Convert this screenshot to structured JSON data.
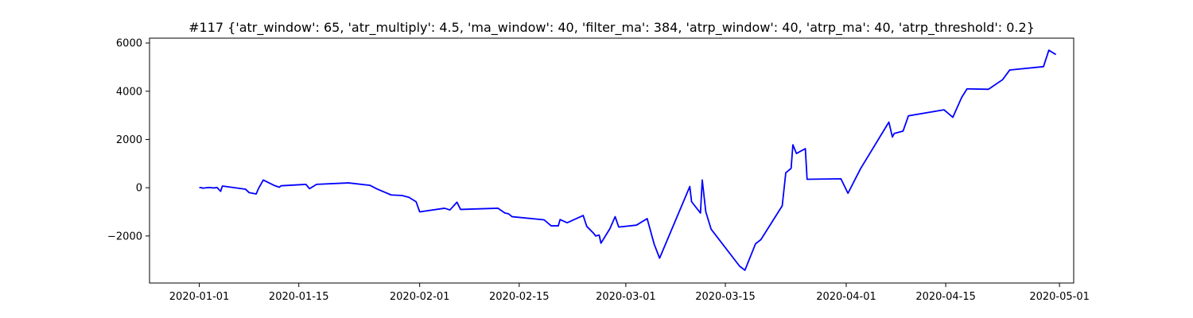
{
  "chart_data": {
    "type": "line",
    "title": "#117 {'atr_window': 65, 'atr_multiply': 4.5, 'ma_window': 40, 'filter_ma': 384, 'atrp_window': 40, 'atrp_ma': 40, 'atrp_threshold': 0.2}",
    "xlabel": "",
    "ylabel": "",
    "x_is_date": true,
    "xlim": [
      "2019-12-25",
      "2020-05-03"
    ],
    "ylim": [
      -3950,
      6200
    ],
    "x_ticks": [
      "2020-01-01",
      "2020-01-15",
      "2020-02-01",
      "2020-02-15",
      "2020-03-01",
      "2020-03-15",
      "2020-04-01",
      "2020-04-15",
      "2020-05-01"
    ],
    "y_ticks": [
      -2000,
      0,
      2000,
      4000,
      6000
    ],
    "y_tick_labels": [
      "−2000",
      "0",
      "2000",
      "4000",
      "6000"
    ],
    "grid": false,
    "legend": "none",
    "series": [
      {
        "color": "#0000ff",
        "points": [
          [
            "2020-01-01 00:00",
            0
          ],
          [
            "2020-01-01 06:00",
            10
          ],
          [
            "2020-01-01 12:00",
            -20
          ],
          [
            "2020-01-02 00:00",
            0
          ],
          [
            "2020-01-02 12:00",
            10
          ],
          [
            "2020-01-03 00:00",
            -10
          ],
          [
            "2020-01-03 12:00",
            10
          ],
          [
            "2020-01-04 00:00",
            -150
          ],
          [
            "2020-01-04 06:00",
            70
          ],
          [
            "2020-01-07 12:00",
            -60
          ],
          [
            "2020-01-08 00:00",
            -200
          ],
          [
            "2020-01-09 00:00",
            -260
          ],
          [
            "2020-01-09 08:00",
            -30
          ],
          [
            "2020-01-10 00:00",
            320
          ],
          [
            "2020-01-11 12:00",
            100
          ],
          [
            "2020-01-12 06:00",
            20
          ],
          [
            "2020-01-12 12:00",
            80
          ],
          [
            "2020-01-16 00:00",
            140
          ],
          [
            "2020-01-16 12:00",
            -40
          ],
          [
            "2020-01-17 12:00",
            140
          ],
          [
            "2020-01-22 00:00",
            200
          ],
          [
            "2020-01-25 00:00",
            100
          ],
          [
            "2020-01-26 00:00",
            -50
          ],
          [
            "2020-01-28 00:00",
            -300
          ],
          [
            "2020-01-29 12:00",
            -320
          ],
          [
            "2020-01-30 12:00",
            -400
          ],
          [
            "2020-01-31 12:00",
            -580
          ],
          [
            "2020-02-01 00:00",
            -1000
          ],
          [
            "2020-02-04 12:00",
            -850
          ],
          [
            "2020-02-05 06:00",
            -920
          ],
          [
            "2020-02-06 06:00",
            -600
          ],
          [
            "2020-02-06 18:00",
            -900
          ],
          [
            "2020-02-12 00:00",
            -850
          ],
          [
            "2020-02-13 00:00",
            -1050
          ],
          [
            "2020-02-13 12:00",
            -1080
          ],
          [
            "2020-02-14 00:00",
            -1200
          ],
          [
            "2020-02-18 12:00",
            -1330
          ],
          [
            "2020-02-19 12:00",
            -1580
          ],
          [
            "2020-02-20 12:00",
            -1580
          ],
          [
            "2020-02-20 18:00",
            -1320
          ],
          [
            "2020-02-21 18:00",
            -1450
          ],
          [
            "2020-02-24 00:00",
            -1150
          ],
          [
            "2020-02-24 12:00",
            -1600
          ],
          [
            "2020-02-25 12:00",
            -1900
          ],
          [
            "2020-02-25 18:00",
            -2000
          ],
          [
            "2020-02-26 06:00",
            -1960
          ],
          [
            "2020-02-26 12:00",
            -2300
          ],
          [
            "2020-02-27 18:00",
            -1700
          ],
          [
            "2020-02-28 12:00",
            -1200
          ],
          [
            "2020-02-29 00:00",
            -1630
          ],
          [
            "2020-03-02 12:00",
            -1550
          ],
          [
            "2020-03-04 00:00",
            -1280
          ],
          [
            "2020-03-05 00:00",
            -2350
          ],
          [
            "2020-03-05 18:00",
            -2920
          ],
          [
            "2020-03-10 00:00",
            50
          ],
          [
            "2020-03-10 06:00",
            -580
          ],
          [
            "2020-03-11 12:00",
            -1050
          ],
          [
            "2020-03-11 18:00",
            320
          ],
          [
            "2020-03-12 06:00",
            -1000
          ],
          [
            "2020-03-13 00:00",
            -1720
          ],
          [
            "2020-03-17 00:00",
            -3250
          ],
          [
            "2020-03-17 18:00",
            -3420
          ],
          [
            "2020-03-19 06:00",
            -2320
          ],
          [
            "2020-03-20 00:00",
            -2150
          ],
          [
            "2020-03-23 00:00",
            -750
          ],
          [
            "2020-03-23 12:00",
            620
          ],
          [
            "2020-03-24 06:00",
            800
          ],
          [
            "2020-03-24 12:00",
            1780
          ],
          [
            "2020-03-25 00:00",
            1420
          ],
          [
            "2020-03-26 06:00",
            1620
          ],
          [
            "2020-03-26 12:00",
            350
          ],
          [
            "2020-03-31 06:00",
            370
          ],
          [
            "2020-04-01 06:00",
            -230
          ],
          [
            "2020-04-03 00:00",
            780
          ],
          [
            "2020-04-07 00:00",
            2720
          ],
          [
            "2020-04-07 12:00",
            2100
          ],
          [
            "2020-04-07 18:00",
            2250
          ],
          [
            "2020-04-09 00:00",
            2350
          ],
          [
            "2020-04-09 18:00",
            2980
          ],
          [
            "2020-04-14 18:00",
            3230
          ],
          [
            "2020-04-16 00:00",
            2920
          ],
          [
            "2020-04-17 06:00",
            3750
          ],
          [
            "2020-04-18 00:00",
            4100
          ],
          [
            "2020-04-21 00:00",
            4080
          ],
          [
            "2020-04-23 00:00",
            4480
          ],
          [
            "2020-04-24 00:00",
            4880
          ],
          [
            "2020-04-28 18:00",
            5020
          ],
          [
            "2020-04-29 12:00",
            5700
          ],
          [
            "2020-04-30 12:00",
            5520
          ]
        ]
      }
    ]
  }
}
